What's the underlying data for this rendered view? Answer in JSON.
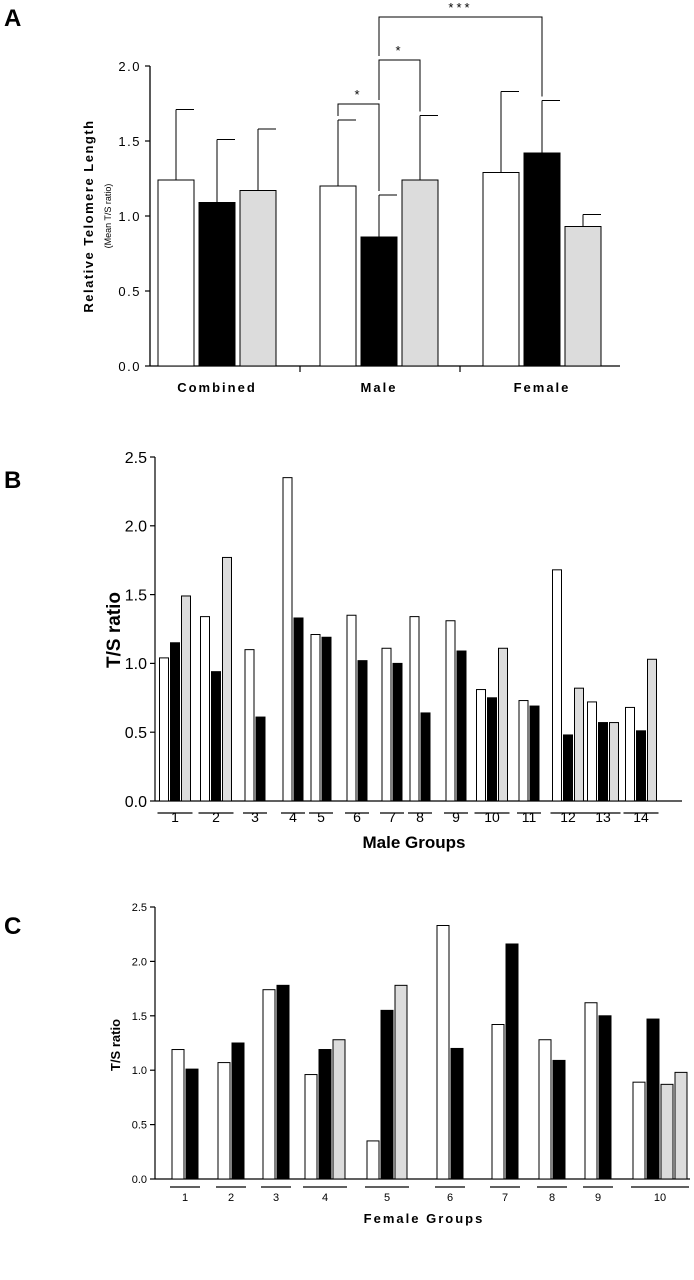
{
  "figure": {
    "panels": [
      "A",
      "B",
      "C"
    ]
  },
  "chart_data": [
    {
      "panel": "A",
      "type": "bar",
      "categories": [
        "Combined",
        "Male",
        "Female"
      ],
      "series": [
        {
          "color": "#ffffff",
          "values": [
            1.24,
            1.2,
            1.29
          ],
          "error": [
            0.47,
            0.44,
            0.54
          ]
        },
        {
          "color": "#000000",
          "values": [
            1.09,
            0.86,
            1.42
          ],
          "error": [
            0.42,
            0.28,
            0.35
          ]
        },
        {
          "color": "#dcdcdc",
          "values": [
            1.17,
            1.24,
            0.93
          ],
          "error": [
            0.41,
            0.43,
            0.08
          ]
        }
      ],
      "ylabel": "Relative Telomere Length",
      "ylabel_sub": "(Mean T/S ratio)",
      "ylim": [
        0,
        2.0
      ],
      "yticks": [
        "0.0",
        "0.5",
        "1.0",
        "1.5",
        "2.0"
      ],
      "significance": [
        {
          "from": "Male / white bar",
          "to": "Male / black bar",
          "label": "*"
        },
        {
          "from": "Male / black bar",
          "to": "Male / grey bar",
          "label": "*"
        },
        {
          "from": "Male / black bar",
          "to": "Female / black bar",
          "label": "***"
        }
      ]
    },
    {
      "panel": "B",
      "type": "bar",
      "xlabel": "Male Groups",
      "ylabel": "T/S ratio",
      "ylim": [
        0,
        2.5
      ],
      "yticks": [
        "0.0",
        "0.5",
        "1.0",
        "1.5",
        "2.0",
        "2.5"
      ],
      "groups": [
        {
          "label": "1",
          "bars": [
            {
              "color": "#ffffff",
              "value": 1.04
            },
            {
              "color": "#000000",
              "value": 1.15
            },
            {
              "color": "#dcdcdc",
              "value": 1.49
            }
          ]
        },
        {
          "label": "2",
          "bars": [
            {
              "color": "#ffffff",
              "value": 1.34
            },
            {
              "color": "#000000",
              "value": 0.94
            },
            {
              "color": "#dcdcdc",
              "value": 1.77
            }
          ]
        },
        {
          "label": "3",
          "bars": [
            {
              "color": "#ffffff",
              "value": 1.1
            },
            {
              "color": "#000000",
              "value": 0.61
            }
          ]
        },
        {
          "label": "4",
          "bars": [
            {
              "color": "#ffffff",
              "value": 2.35
            },
            {
              "color": "#000000",
              "value": 1.33
            }
          ]
        },
        {
          "label": "5",
          "bars": [
            {
              "color": "#ffffff",
              "value": 1.21
            },
            {
              "color": "#000000",
              "value": 1.19
            }
          ]
        },
        {
          "label": "6",
          "bars": [
            {
              "color": "#ffffff",
              "value": 1.35
            },
            {
              "color": "#000000",
              "value": 1.02
            }
          ]
        },
        {
          "label": "7",
          "bars": [
            {
              "color": "#ffffff",
              "value": 1.11
            },
            {
              "color": "#000000",
              "value": 1.0
            }
          ]
        },
        {
          "label": "8",
          "bars": [
            {
              "color": "#ffffff",
              "value": 1.34
            },
            {
              "color": "#000000",
              "value": 0.64
            }
          ]
        },
        {
          "label": "9",
          "bars": [
            {
              "color": "#ffffff",
              "value": 1.31
            },
            {
              "color": "#000000",
              "value": 1.09
            }
          ]
        },
        {
          "label": "10",
          "bars": [
            {
              "color": "#ffffff",
              "value": 0.81
            },
            {
              "color": "#000000",
              "value": 0.75
            },
            {
              "color": "#dcdcdc",
              "value": 1.11
            }
          ]
        },
        {
          "label": "11",
          "bars": [
            {
              "color": "#ffffff",
              "value": 0.73
            },
            {
              "color": "#000000",
              "value": 0.69
            }
          ]
        },
        {
          "label": "12",
          "bars": [
            {
              "color": "#ffffff",
              "value": 1.68
            },
            {
              "color": "#000000",
              "value": 0.48
            },
            {
              "color": "#dcdcdc",
              "value": 0.82
            }
          ]
        },
        {
          "label": "13",
          "bars": [
            {
              "color": "#ffffff",
              "value": 0.72
            },
            {
              "color": "#000000",
              "value": 0.57
            },
            {
              "color": "#dcdcdc",
              "value": 0.57
            }
          ]
        },
        {
          "label": "14",
          "bars": [
            {
              "color": "#ffffff",
              "value": 0.68
            },
            {
              "color": "#000000",
              "value": 0.51
            },
            {
              "color": "#dcdcdc",
              "value": 1.03
            }
          ]
        }
      ]
    },
    {
      "panel": "C",
      "type": "bar",
      "xlabel": "Female Groups",
      "ylabel": "T/S ratio",
      "ylim": [
        0,
        2.5
      ],
      "yticks": [
        "0.0",
        "0.5",
        "1.0",
        "1.5",
        "2.0",
        "2.5"
      ],
      "groups": [
        {
          "label": "1",
          "bars": [
            {
              "color": "#ffffff",
              "value": 1.19
            },
            {
              "color": "#000000",
              "value": 1.01
            }
          ]
        },
        {
          "label": "2",
          "bars": [
            {
              "color": "#ffffff",
              "value": 1.07
            },
            {
              "color": "#000000",
              "value": 1.25
            }
          ]
        },
        {
          "label": "3",
          "bars": [
            {
              "color": "#ffffff",
              "value": 1.74
            },
            {
              "color": "#000000",
              "value": 1.78
            }
          ]
        },
        {
          "label": "4",
          "bars": [
            {
              "color": "#ffffff",
              "value": 0.96
            },
            {
              "color": "#000000",
              "value": 1.19
            },
            {
              "color": "#dcdcdc",
              "value": 1.28
            }
          ]
        },
        {
          "label": "5",
          "bars": [
            {
              "color": "#ffffff",
              "value": 0.35
            },
            {
              "color": "#000000",
              "value": 1.55
            },
            {
              "color": "#dcdcdc",
              "value": 1.78
            }
          ]
        },
        {
          "label": "6",
          "bars": [
            {
              "color": "#ffffff",
              "value": 2.33
            },
            {
              "color": "#000000",
              "value": 1.2
            }
          ]
        },
        {
          "label": "7",
          "bars": [
            {
              "color": "#ffffff",
              "value": 1.42
            },
            {
              "color": "#000000",
              "value": 2.16
            }
          ]
        },
        {
          "label": "8",
          "bars": [
            {
              "color": "#ffffff",
              "value": 1.28
            },
            {
              "color": "#000000",
              "value": 1.09
            }
          ]
        },
        {
          "label": "9",
          "bars": [
            {
              "color": "#ffffff",
              "value": 1.62
            },
            {
              "color": "#000000",
              "value": 1.5
            }
          ]
        },
        {
          "label": "10",
          "bars": [
            {
              "color": "#ffffff",
              "value": 0.89
            },
            {
              "color": "#000000",
              "value": 1.47
            },
            {
              "color": "#dcdcdc",
              "value": 0.87
            },
            {
              "color": "#dcdcdc",
              "value": 0.98
            }
          ]
        }
      ]
    }
  ]
}
